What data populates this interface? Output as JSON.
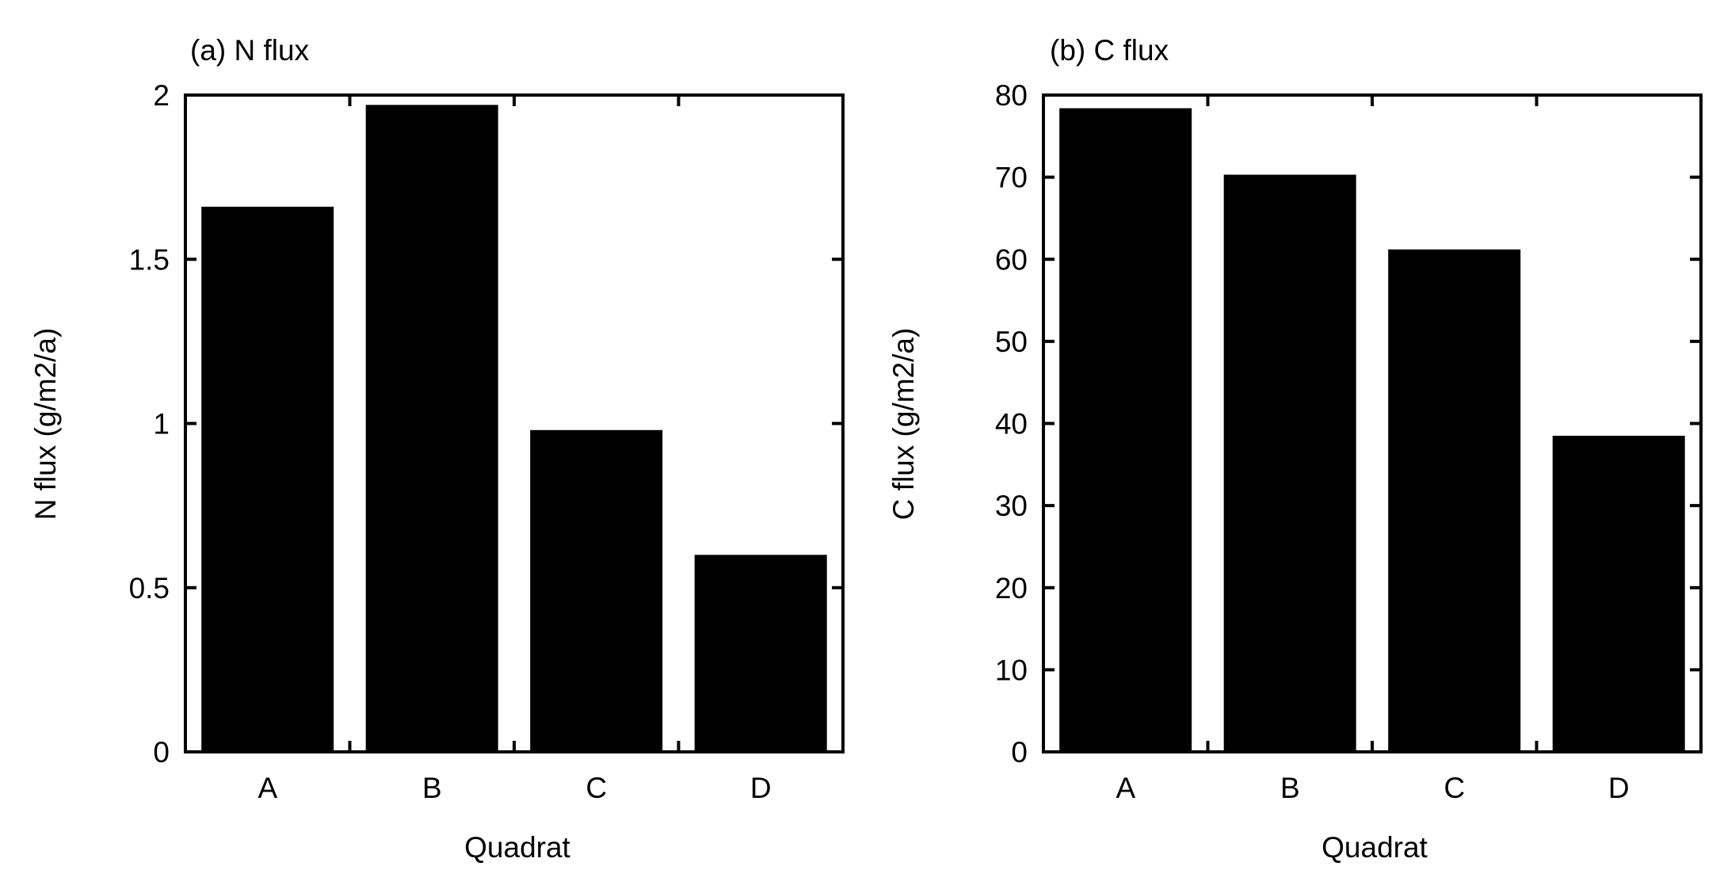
{
  "chart_data": [
    {
      "type": "bar",
      "title": "(a) N flux",
      "xlabel": "Quadrat",
      "ylabel": "N flux (g/m2/a)",
      "categories": [
        "A",
        "B",
        "C",
        "D"
      ],
      "values": [
        1.66,
        1.97,
        0.98,
        0.6
      ],
      "ylim": [
        0,
        2
      ],
      "yticks": [
        0,
        0.5,
        1,
        1.5,
        2
      ],
      "ytick_labels": [
        "0",
        "0.5",
        "1",
        "1.5",
        "2"
      ],
      "grid": false,
      "bar_color": "#000000"
    },
    {
      "type": "bar",
      "title": "(b) C flux",
      "xlabel": "Quadrat",
      "ylabel": "C flux (g/m2/a)",
      "categories": [
        "A",
        "B",
        "C",
        "D"
      ],
      "values": [
        78.4,
        70.3,
        61.2,
        38.5
      ],
      "ylim": [
        0,
        80
      ],
      "yticks": [
        0,
        10,
        20,
        30,
        40,
        50,
        60,
        70,
        80
      ],
      "ytick_labels": [
        "0",
        "10",
        "20",
        "30",
        "40",
        "50",
        "60",
        "70",
        "80"
      ],
      "grid": false,
      "bar_color": "#000000"
    }
  ]
}
